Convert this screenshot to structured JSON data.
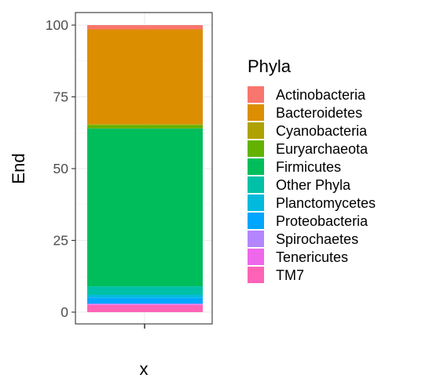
{
  "chart_data": {
    "type": "bar",
    "stacked": true,
    "categories": [
      ""
    ],
    "xlabel": "x",
    "ylabel": "End",
    "ylim": [
      0,
      100
    ],
    "yticks": [
      0,
      25,
      50,
      75,
      100
    ],
    "grid": true,
    "legend_title": "Phyla",
    "legend_position": "right",
    "series": [
      {
        "name": "Actinobacteria",
        "color": "#F8766D",
        "values": [
          1.5
        ]
      },
      {
        "name": "Bacteroidetes",
        "color": "#DB8E00",
        "values": [
          33.0
        ]
      },
      {
        "name": "Cyanobacteria",
        "color": "#AEA200",
        "values": [
          0.3
        ]
      },
      {
        "name": "Euryarchaeota",
        "color": "#64B200",
        "values": [
          1.2
        ]
      },
      {
        "name": "Firmicutes",
        "color": "#00BD5C",
        "values": [
          55.0
        ]
      },
      {
        "name": "Other Phyla",
        "color": "#00C1A7",
        "values": [
          3.0
        ]
      },
      {
        "name": "Planctomycetes",
        "color": "#00BADE",
        "values": [
          1.0
        ]
      },
      {
        "name": "Proteobacteria",
        "color": "#00A6FF",
        "values": [
          2.0
        ]
      },
      {
        "name": "Spirochaetes",
        "color": "#B385FF",
        "values": [
          0.3
        ]
      },
      {
        "name": "Tenericutes",
        "color": "#EF67EB",
        "values": [
          0.2
        ]
      },
      {
        "name": "TM7",
        "color": "#FF63B6",
        "values": [
          2.5
        ]
      }
    ]
  }
}
